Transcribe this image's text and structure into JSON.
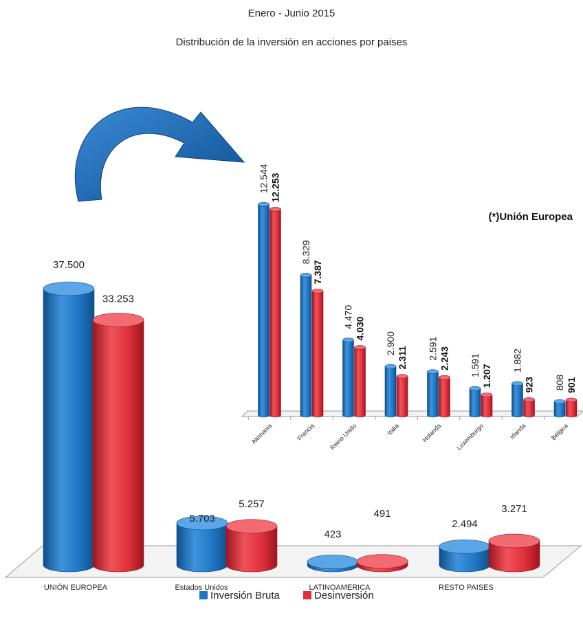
{
  "colors": {
    "inversion": "#1f77c4",
    "inversion_dark": "#0f4f8a",
    "inversion_light": "#5aa6e6",
    "desinversion": "#e0303a",
    "desinversion_dark": "#9c1520",
    "desinversion_light": "#f26b72",
    "arrow": "#1767b3"
  },
  "chart_data": [
    {
      "type": "bar",
      "title": "Enero - Junio 2015",
      "subtitle": "Distribución de la inversión en acciones por paises",
      "categories": [
        "UNIÓN EUROPEA",
        "Estados Unidos",
        "LATINOAMERICA",
        "RESTO PAISES"
      ],
      "series": [
        {
          "name": "Inversión Bruta",
          "values": [
            37500,
            5703,
            423,
            2494
          ],
          "labels": [
            "37.500",
            "5.703",
            "423",
            "2.494"
          ]
        },
        {
          "name": "Desinversión",
          "values": [
            33253,
            5257,
            491,
            3271
          ],
          "labels": [
            "33.253",
            "5.257",
            "491",
            "3.271"
          ]
        }
      ],
      "legend": "bottom-center"
    },
    {
      "type": "bar",
      "title": "(*)Unión Europea",
      "categories": [
        "Alemania",
        "Francia",
        "Reino Unido",
        "Italia",
        "Holanda",
        "Luxemburgo",
        "Irlanda",
        "Bélgica"
      ],
      "series": [
        {
          "name": "Inversión Bruta",
          "values": [
            12544,
            8329,
            4470,
            2900,
            2591,
            1591,
            1882,
            808
          ],
          "labels": [
            "12.544",
            "8.329",
            "4.470",
            "2.900",
            "2.591",
            "1.591",
            "1.882",
            "808"
          ]
        },
        {
          "name": "Desinversión",
          "values": [
            12253,
            7387,
            4030,
            2311,
            2243,
            1207,
            923,
            901
          ],
          "labels": [
            "12.253",
            "7.387",
            "4.030",
            "2.311",
            "2.243",
            "1.207",
            "923",
            "901"
          ]
        }
      ]
    }
  ]
}
